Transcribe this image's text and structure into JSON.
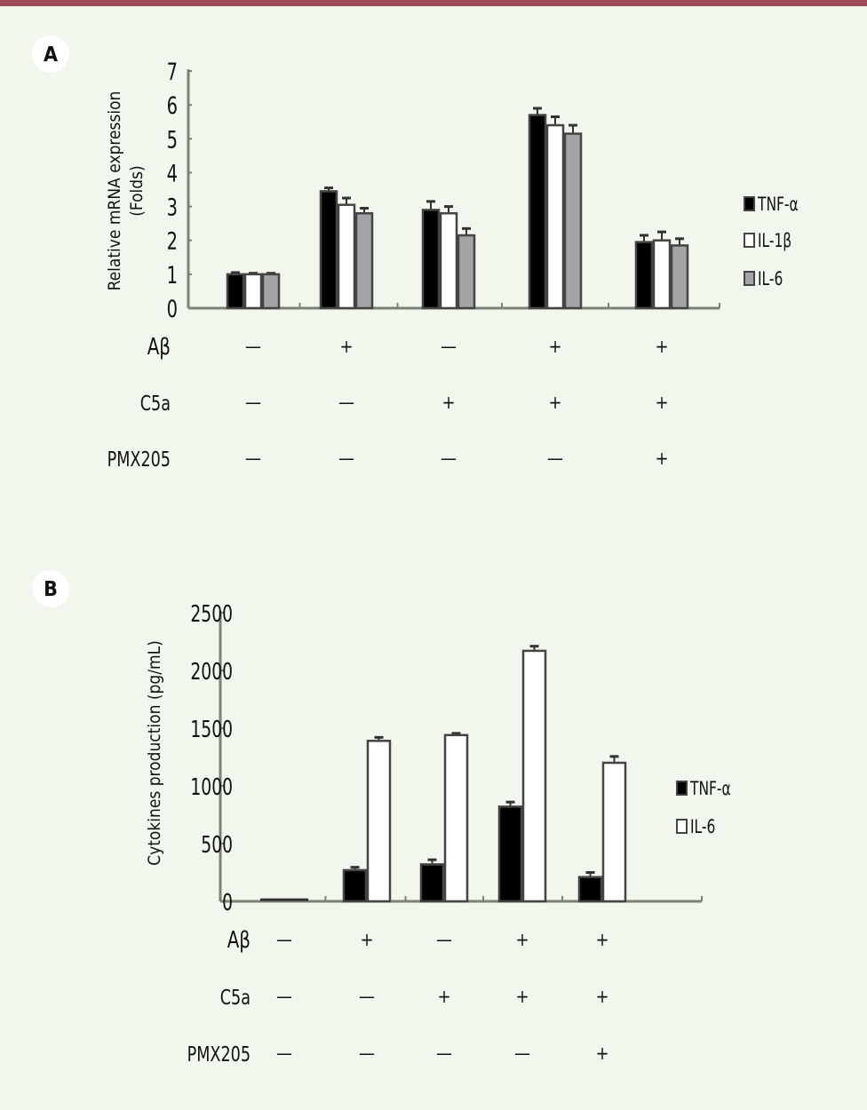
{
  "colors": {
    "top_bar": "#9c4a58",
    "background": "#f1f7ec",
    "TNF-α": "#000000",
    "IL-1β": "#ffffff",
    "IL-6_A": "#a4a4a8",
    "IL-6_B": "#ffffff"
  },
  "treatment_rows": [
    "Aβ",
    "C5a",
    "PMX205"
  ],
  "chart_data": [
    {
      "panel": "A",
      "type": "bar",
      "ylabel_line1": "Relative mRNA expression",
      "ylabel_line2": "(Folds)",
      "ylim": [
        0,
        7
      ],
      "yticks": [
        "0",
        "1",
        "2",
        "3",
        "4",
        "5",
        "6",
        "7"
      ],
      "legend_position": "right",
      "series": [
        {
          "name": "TNF-α",
          "values": [
            1.0,
            3.45,
            2.9,
            5.7,
            1.95
          ],
          "errors": [
            0.05,
            0.1,
            0.25,
            0.2,
            0.2
          ]
        },
        {
          "name": "IL-1β",
          "values": [
            1.0,
            3.05,
            2.8,
            5.4,
            2.0
          ],
          "errors": [
            0.03,
            0.2,
            0.2,
            0.25,
            0.25
          ]
        },
        {
          "name": "IL-6",
          "values": [
            1.0,
            2.8,
            2.15,
            5.15,
            1.85
          ],
          "errors": [
            0.03,
            0.15,
            0.2,
            0.25,
            0.2
          ]
        }
      ],
      "conditions": {
        "Aβ": [
          "—",
          "+",
          "—",
          "+",
          "+"
        ],
        "C5a": [
          "—",
          "—",
          "+",
          "+",
          "+"
        ],
        "PMX205": [
          "—",
          "—",
          "—",
          "—",
          "+"
        ]
      }
    },
    {
      "panel": "B",
      "type": "bar",
      "ylabel": "Cytokines production (pg/mL)",
      "ylim": [
        0,
        2500
      ],
      "yticks": [
        "0",
        "500",
        "1000",
        "1500",
        "2000",
        "2500"
      ],
      "legend_position": "right",
      "series": [
        {
          "name": "TNF-α",
          "values": [
            10,
            270,
            320,
            820,
            210
          ],
          "errors": [
            0,
            25,
            40,
            40,
            40
          ]
        },
        {
          "name": "IL-6",
          "values": [
            10,
            1390,
            1440,
            2170,
            1200
          ],
          "errors": [
            0,
            30,
            15,
            40,
            55
          ]
        }
      ],
      "conditions": {
        "Aβ": [
          "—",
          "+",
          "—",
          "+",
          "+"
        ],
        "C5a": [
          "—",
          "—",
          "+",
          "+",
          "+"
        ],
        "PMX205": [
          "—",
          "—",
          "—",
          "—",
          "+"
        ]
      }
    }
  ]
}
